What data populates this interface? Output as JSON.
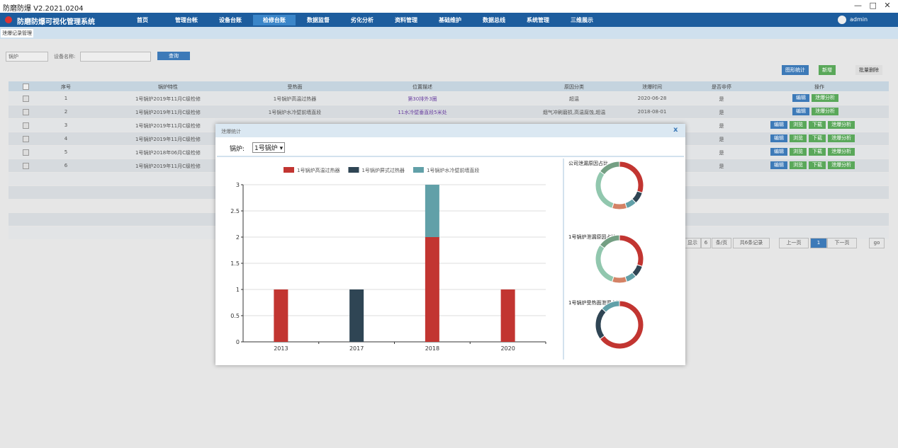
{
  "window": {
    "title": "防磨防爆 V2.2021.0204"
  },
  "app": {
    "title": "防磨防爆可视化管理系统",
    "user": "admin",
    "nav": [
      "首页",
      "管理台帐",
      "设备台账",
      "检修台账",
      "数据监督",
      "劣化分析",
      "资料管理",
      "基础维护",
      "数据总线",
      "系统管理",
      "三维展示"
    ]
  },
  "tab": "泄爆记录管理",
  "filter": {
    "select": "锅炉",
    "label": "设备名称:",
    "button": "查询"
  },
  "toolbar": [
    "图形统计",
    "新增",
    "批量删除"
  ],
  "table": {
    "headers": [
      "序号",
      "锅炉特性",
      "受热面",
      "位置描述",
      "原因分类",
      "泄爆时间",
      "是否非停",
      "操作"
    ],
    "rows": [
      {
        "seq": 1,
        "spec": "1号锅炉2019年11月C级检修",
        "surface": "1号锅炉高温过热器",
        "position": "第30排外3圈",
        "reason": "超温",
        "time": "2020-06-28",
        "nonstop": "是",
        "ops": [
          "编辑",
          "泄爆分析"
        ]
      },
      {
        "seq": 2,
        "spec": "1号锅炉2019年11月C级检修",
        "surface": "1号锅炉水冷壁前墙直段",
        "position": "11水冷壁垂直段5米处",
        "reason": "烟气冲刷磨损,高温腐蚀,超温",
        "time": "2018-08-01",
        "nonstop": "是",
        "ops": [
          "编辑",
          "泄爆分析"
        ]
      },
      {
        "seq": 3,
        "spec": "1号锅炉2019年11月C级检修",
        "nonstop": "是",
        "ops": [
          "编辑",
          "浏览",
          "下载",
          "泄爆分析"
        ]
      },
      {
        "seq": 4,
        "spec": "1号锅炉2019年11月C级检修",
        "nonstop": "是",
        "ops": [
          "编辑",
          "浏览",
          "下载",
          "泄爆分析"
        ]
      },
      {
        "seq": 5,
        "spec": "1号锅炉2018年06月C级检修",
        "nonstop": "是",
        "ops": [
          "编辑",
          "浏览",
          "下载",
          "泄爆分析"
        ]
      },
      {
        "seq": 6,
        "spec": "1号锅炉2019年11月C级检修",
        "nonstop": "是",
        "ops": [
          "编辑",
          "浏览",
          "下载",
          "泄爆分析"
        ]
      }
    ]
  },
  "pagination": [
    "显示",
    "6",
    "条/页",
    "共6条记录",
    "上一页",
    "1",
    "下一页",
    "go"
  ],
  "modal": {
    "title": "泄爆统计",
    "close": "x",
    "label": "锅炉:",
    "select": "1号锅炉 ▾"
  },
  "chart_data": [
    {
      "type": "bar",
      "stacked": true,
      "categories": [
        "2013",
        "2017",
        "2018",
        "2020"
      ],
      "series": [
        {
          "name": "1号锅炉高温过热器",
          "color": "#c23531",
          "values": [
            1,
            0,
            2,
            1
          ]
        },
        {
          "name": "1号锅炉屏式过热器",
          "color": "#2f4554",
          "values": [
            0,
            1,
            0,
            0
          ]
        },
        {
          "name": "1号锅炉水冷壁前墙直段",
          "color": "#61a0a8",
          "values": [
            0,
            0,
            1,
            0
          ]
        }
      ],
      "ylim": [
        0,
        3
      ],
      "yticks": [
        0,
        0.5,
        1,
        1.5,
        2,
        2.5,
        3
      ],
      "grid": true
    },
    {
      "type": "pie",
      "title": "公司泄漏原因占比",
      "values": [
        30,
        8,
        7,
        10,
        30,
        15
      ],
      "colors": [
        "#c23531",
        "#2f4554",
        "#61a0a8",
        "#d48265",
        "#91c7ae",
        "#749f83"
      ]
    },
    {
      "type": "pie",
      "title": "1号锅炉泄漏原因占比",
      "values": [
        30,
        8,
        7,
        10,
        30,
        15
      ],
      "colors": [
        "#c23531",
        "#2f4554",
        "#61a0a8",
        "#d48265",
        "#91c7ae",
        "#749f83"
      ]
    },
    {
      "type": "pie",
      "title": "1号锅炉受热面泄漏占比",
      "values": [
        65,
        22,
        13
      ],
      "colors": [
        "#c23531",
        "#2f4554",
        "#61a0a8"
      ]
    }
  ]
}
